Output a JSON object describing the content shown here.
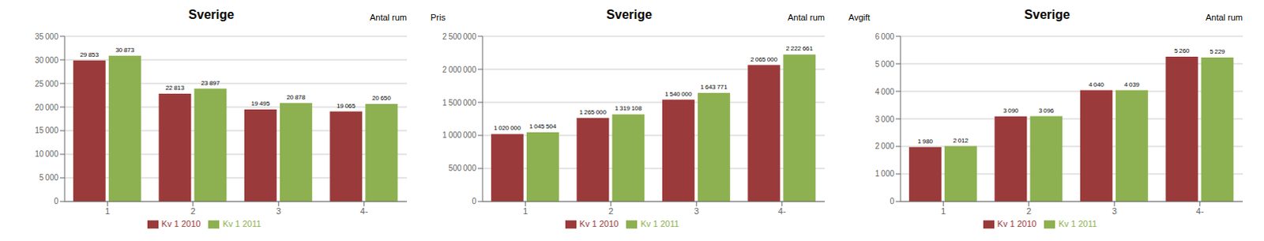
{
  "chart_data": [
    {
      "type": "bar",
      "title": "Sverige",
      "annotation": "Antal rum",
      "categories": [
        "1",
        "2",
        "3",
        "4-"
      ],
      "series": [
        {
          "name": "Kv 1 2010",
          "color": "#9B3A3A",
          "values": [
            29853,
            22813,
            19495,
            19065
          ],
          "value_labels": [
            "29 853",
            "22 813",
            "19 495",
            "19 065"
          ]
        },
        {
          "name": "Kv 1 2011",
          "color": "#8DB050",
          "values": [
            30873,
            23897,
            20878,
            20650
          ],
          "value_labels": [
            "30 873",
            "23 897",
            "20 878",
            "20 650"
          ]
        }
      ],
      "ylim": [
        0,
        35000
      ],
      "yticks": [
        0,
        {
          "value": 5000,
          "label": "5 000"
        },
        {
          "value": 10000,
          "label": "10 000"
        },
        {
          "value": 15000,
          "label": "15 000"
        },
        {
          "value": 20000,
          "label": "20 000"
        },
        {
          "value": 25000,
          "label": "25 000"
        },
        {
          "value": 30000,
          "label": "30 000"
        },
        {
          "value": 35000,
          "label": "35 000"
        }
      ],
      "grid": true,
      "legend": "bottom",
      "data_labels": true
    },
    {
      "type": "bar",
      "title": "Sverige",
      "ylabel": "Pris",
      "annotation": "Antal rum",
      "categories": [
        "1",
        "2",
        "3",
        "4-"
      ],
      "series": [
        {
          "name": "Kv 1 2010",
          "color": "#9B3A3A",
          "values": [
            1020000,
            1265000,
            1540000,
            2065000
          ],
          "value_labels": [
            "1 020 000",
            "1 265 000",
            "1 540 000",
            "2 065 000"
          ]
        },
        {
          "name": "Kv 1 2011",
          "color": "#8DB050",
          "values": [
            1045504,
            1319108,
            1643771,
            2222661
          ],
          "value_labels": [
            "1 045 504",
            "1 319 108",
            "1 643 771",
            "2 222 661"
          ]
        }
      ],
      "ylim": [
        0,
        2500000
      ],
      "yticks": [
        0,
        {
          "value": 500000,
          "label": "500 000"
        },
        {
          "value": 1000000,
          "label": "1 000 000"
        },
        {
          "value": 1500000,
          "label": "1 500 000"
        },
        {
          "value": 2000000,
          "label": "2 000 000"
        },
        {
          "value": 2500000,
          "label": "2 500 000"
        }
      ],
      "grid": true,
      "legend": "bottom",
      "data_labels": true
    },
    {
      "type": "bar",
      "title": "Sverige",
      "ylabel": "Avgift",
      "annotation": "Antal rum",
      "categories": [
        "1",
        "2",
        "3",
        "4-"
      ],
      "series": [
        {
          "name": "Kv 1 2010",
          "color": "#9B3A3A",
          "values": [
            1980,
            3090,
            4040,
            5260
          ],
          "value_labels": [
            "1 980",
            "3 090",
            "4 040",
            "5 260"
          ]
        },
        {
          "name": "Kv 1 2011",
          "color": "#8DB050",
          "values": [
            2012,
            3096,
            4039,
            5229
          ],
          "value_labels": [
            "2 012",
            "3 096",
            "4 039",
            "5 229"
          ]
        }
      ],
      "ylim": [
        0,
        6000
      ],
      "yticks": [
        0,
        {
          "value": 1000,
          "label": "1 000"
        },
        {
          "value": 2000,
          "label": "2 000"
        },
        {
          "value": 3000,
          "label": "3 000"
        },
        {
          "value": 4000,
          "label": "4 000"
        },
        {
          "value": 5000,
          "label": "5 000"
        },
        {
          "value": 6000,
          "label": "6 000"
        }
      ],
      "grid": true,
      "legend": "bottom",
      "data_labels": true
    }
  ]
}
